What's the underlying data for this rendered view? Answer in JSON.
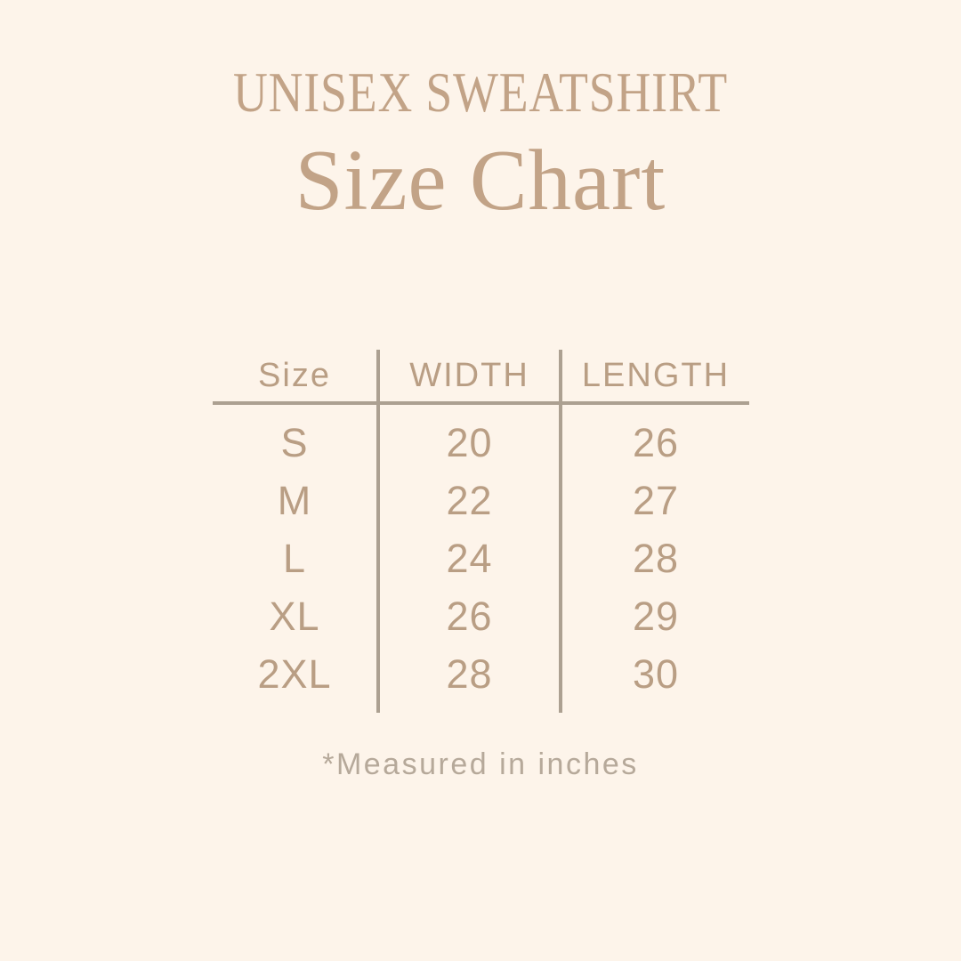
{
  "page": {
    "background_color": "#fdf4ea",
    "accent_text_color": "#c2a387",
    "table_text_color": "#b99e84",
    "line_color": "#aca091",
    "footnote_color": "#b6a99a"
  },
  "header": {
    "title": "UNISEX SWEATSHIRT",
    "subtitle": "Size Chart"
  },
  "table": {
    "columns": [
      "Size",
      "WIDTH",
      "LENGTH"
    ],
    "rows": [
      {
        "size": "S",
        "width": "20",
        "length": "26"
      },
      {
        "size": "M",
        "width": "22",
        "length": "27"
      },
      {
        "size": "L",
        "width": "24",
        "length": "28"
      },
      {
        "size": "XL",
        "width": "26",
        "length": "29"
      },
      {
        "size": "2XL",
        "width": "28",
        "length": "30"
      }
    ]
  },
  "footnote": {
    "text": "*Measured in inches"
  },
  "chart_data": {
    "type": "table",
    "title": "UNISEX SWEATSHIRT Size Chart",
    "columns": [
      "Size",
      "WIDTH",
      "LENGTH"
    ],
    "rows": [
      [
        "S",
        20,
        26
      ],
      [
        "M",
        22,
        27
      ],
      [
        "L",
        24,
        28
      ],
      [
        "XL",
        26,
        29
      ],
      [
        "2XL",
        28,
        30
      ]
    ],
    "units": "inches",
    "note": "*Measured in inches"
  }
}
